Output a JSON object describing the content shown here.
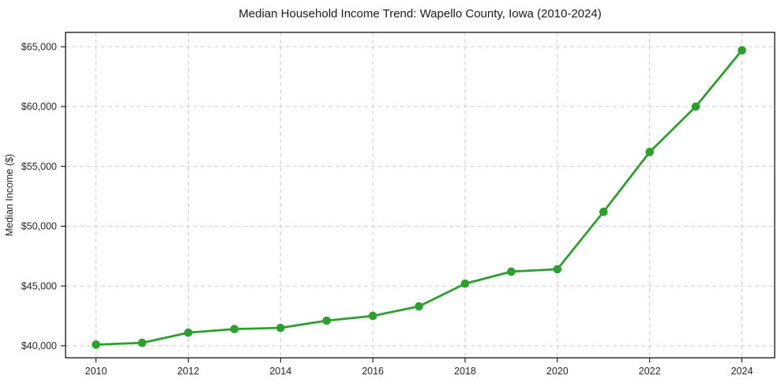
{
  "figure": {
    "background": "#ffffff"
  },
  "chart_data": {
    "type": "line",
    "title": "Median Household Income Trend: Wapello County, Iowa (2010-2024)",
    "xlabel": "",
    "ylabel": "Median Income ($)",
    "x": [
      2010,
      2011,
      2012,
      2013,
      2014,
      2015,
      2016,
      2017,
      2018,
      2019,
      2020,
      2021,
      2022,
      2023,
      2024
    ],
    "series": [
      {
        "name": "Median household income",
        "values": [
          40100,
          40250,
          41100,
          41400,
          41500,
          42100,
          42500,
          43300,
          45200,
          46200,
          46400,
          51200,
          56200,
          60000,
          64700
        ],
        "color": "#2ca02c",
        "marker": "circle"
      }
    ],
    "xticks": [
      2010,
      2012,
      2014,
      2016,
      2018,
      2020,
      2022,
      2024
    ],
    "yticks": [
      40000,
      45000,
      50000,
      55000,
      60000,
      65000
    ],
    "ytick_labels": [
      "$40,000",
      "$45,000",
      "$50,000",
      "$55,000",
      "$60,000",
      "$65,000"
    ],
    "xlim": [
      2009.34,
      2024.71
    ],
    "ylim": [
      39000,
      66200
    ],
    "grid": true,
    "grid_style": "dashed",
    "legend": "none",
    "colors": {
      "line": "#2ca02c",
      "grid": "#cccccc",
      "spine": "#000000",
      "tick_text": "#262626",
      "title_text": "#1a1a1a"
    }
  }
}
